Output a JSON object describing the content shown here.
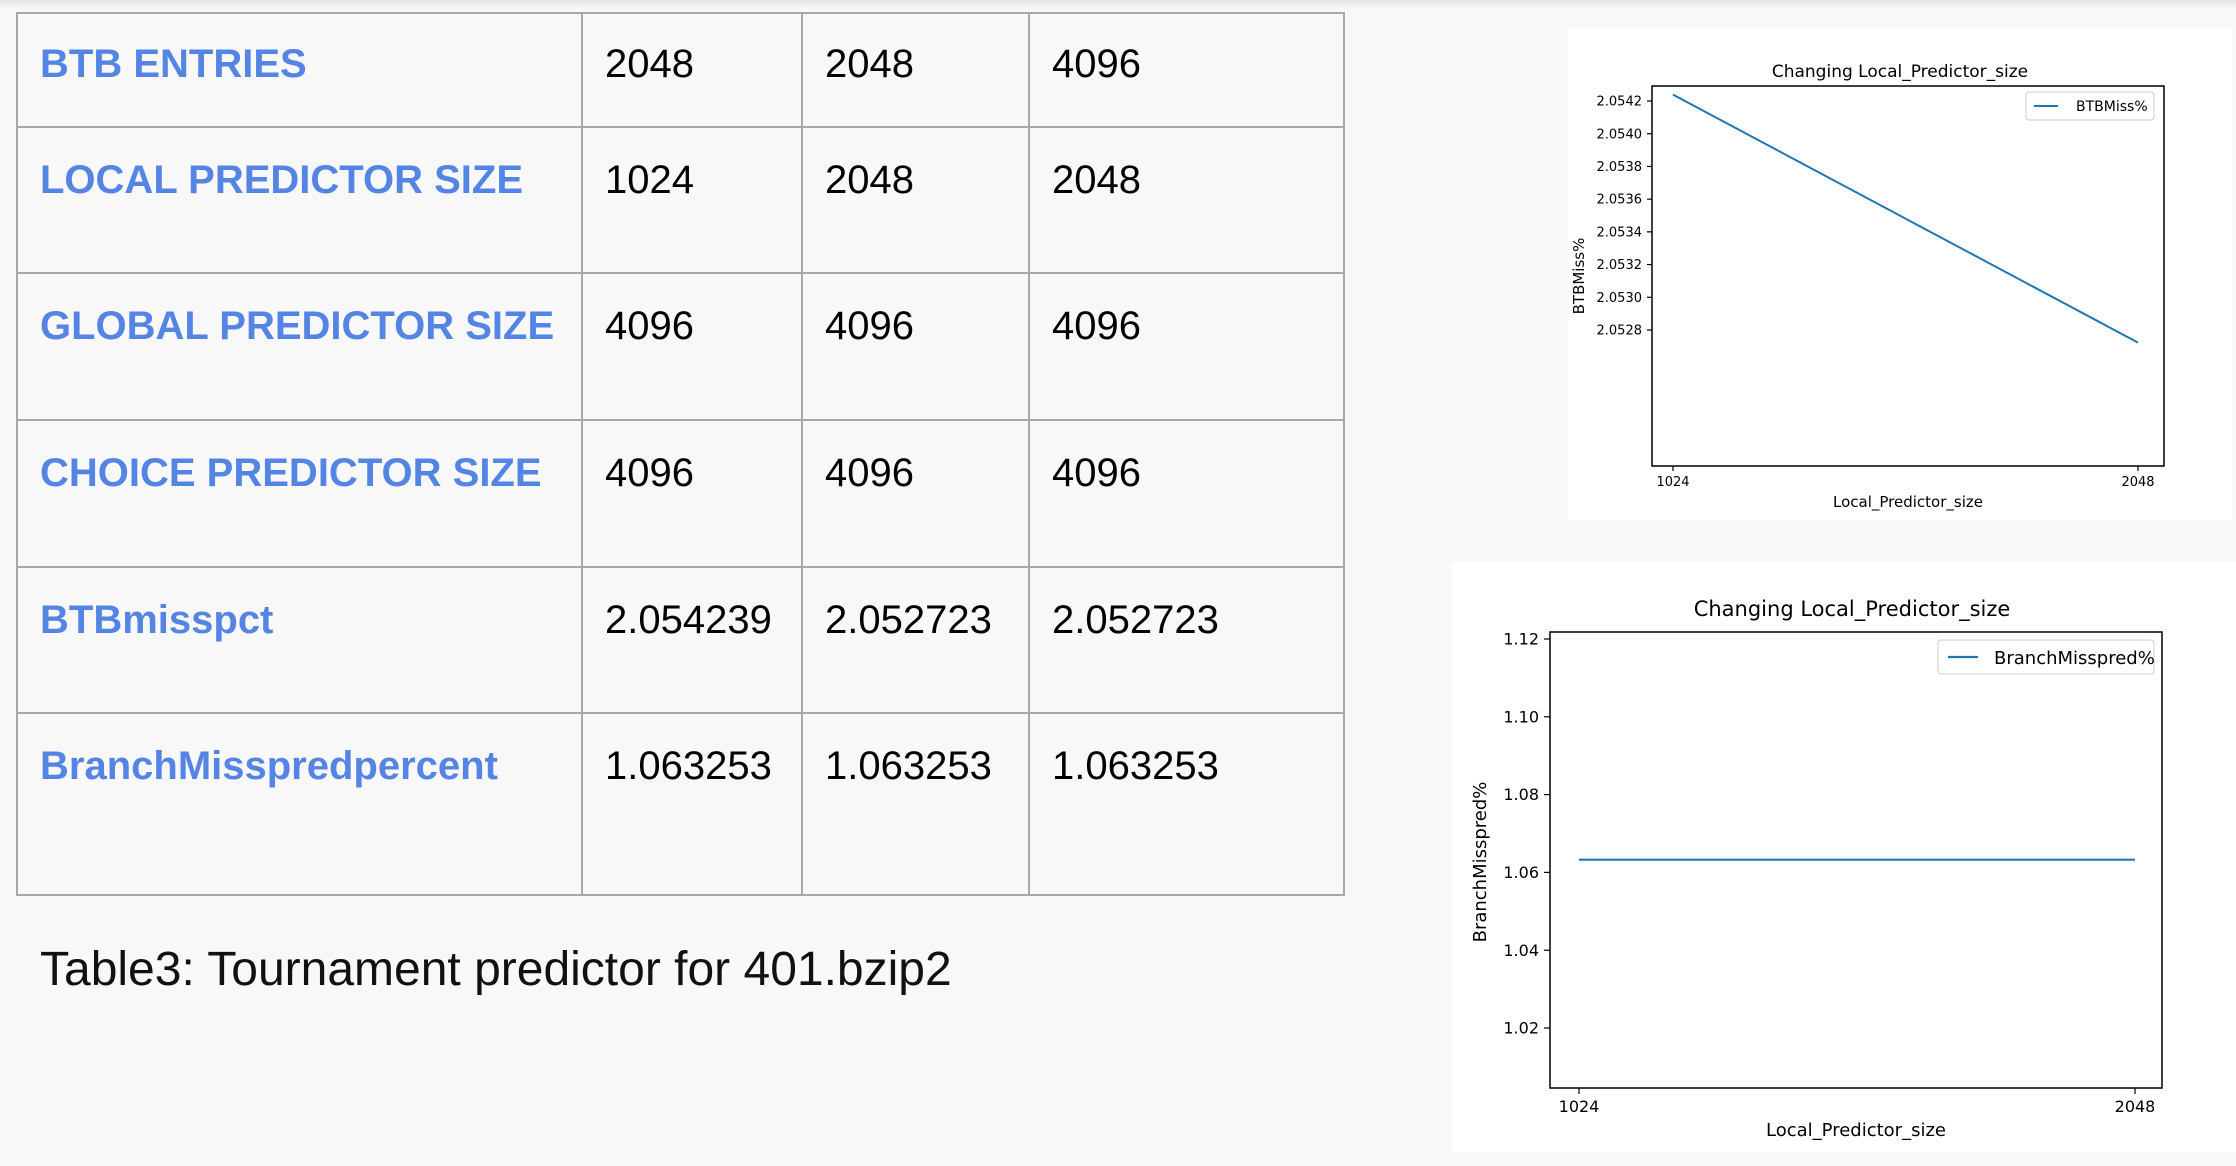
{
  "table": {
    "rows": [
      {
        "label": "BTB ENTRIES",
        "values": [
          "2048",
          "2048",
          "4096"
        ]
      },
      {
        "label": "LOCAL PREDICTOR SIZE",
        "values": [
          "1024",
          "2048",
          "2048"
        ]
      },
      {
        "label": "GLOBAL PREDICTOR SIZE",
        "values": [
          "4096",
          "4096",
          "4096"
        ]
      },
      {
        "label": "CHOICE PREDICTOR SIZE",
        "values": [
          "4096",
          "4096",
          "4096"
        ]
      },
      {
        "label": "BTBmisspct",
        "values": [
          "2.054239",
          "2.052723",
          "2.052723"
        ]
      },
      {
        "label": "BranchMisspredpercent",
        "values": [
          "1.063253",
          "1.063253",
          "1.063253"
        ]
      }
    ]
  },
  "caption": "Table3: Tournament predictor for 401.bzip2",
  "colors": {
    "header_text": "#5485e4",
    "series_line": "#1f77b4"
  },
  "chart_data": [
    {
      "type": "line",
      "title": "Changing Local_Predictor_size",
      "xlabel": "Local_Predictor_size",
      "ylabel": "BTBMiss%",
      "x": [
        1024,
        2048
      ],
      "x_ticks": [
        "1024",
        "2048"
      ],
      "y_ticks": [
        "2.0528",
        "2.0530",
        "2.0532",
        "2.0534",
        "2.0536",
        "2.0538",
        "2.0540",
        "2.0542"
      ],
      "series": [
        {
          "name": "BTBMiss%",
          "values": [
            2.054239,
            2.052723
          ]
        }
      ],
      "legend": "top-right",
      "grid": false
    },
    {
      "type": "line",
      "title": "Changing Local_Predictor_size",
      "xlabel": "Local_Predictor_size",
      "ylabel": "BranchMisspred%",
      "x": [
        1024,
        2048
      ],
      "x_ticks": [
        "1024",
        "2048"
      ],
      "y_ticks": [
        "1.02",
        "1.04",
        "1.06",
        "1.08",
        "1.10",
        "1.12"
      ],
      "series": [
        {
          "name": "BranchMisspred%",
          "values": [
            1.063253,
            1.063253
          ]
        }
      ],
      "legend": "top-right",
      "grid": false
    }
  ]
}
